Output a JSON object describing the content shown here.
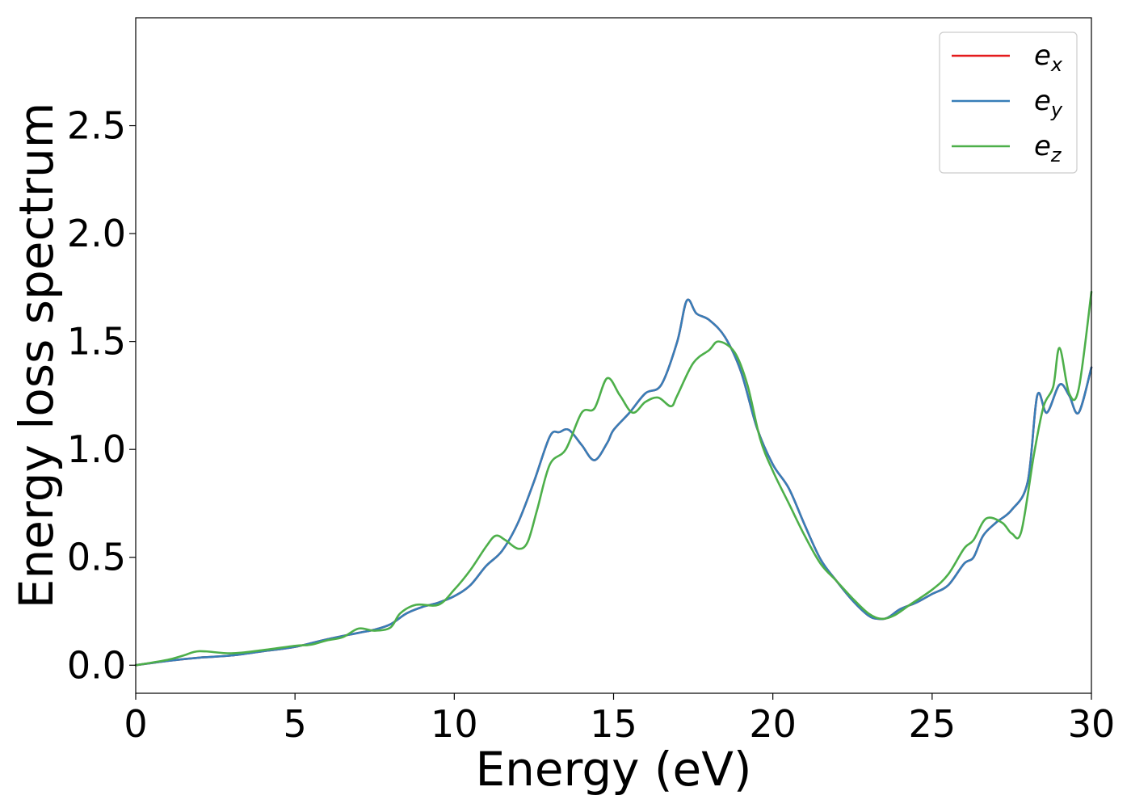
{
  "chart_data": {
    "type": "line",
    "title": "",
    "xlabel": "Energy (eV)",
    "ylabel": "Energy loss spectrum",
    "xlim": [
      0,
      30
    ],
    "ylim": [
      -0.13,
      3.0
    ],
    "xticks": [
      0,
      5,
      10,
      15,
      20,
      25,
      30
    ],
    "xtick_labels": [
      "0",
      "5",
      "10",
      "15",
      "20",
      "25",
      "30"
    ],
    "yticks": [
      0.0,
      0.5,
      1.0,
      1.5,
      2.0,
      2.5
    ],
    "ytick_labels": [
      "0.0",
      "0.5",
      "1.0",
      "1.5",
      "2.0",
      "2.5"
    ],
    "grid": false,
    "legend_position": "top-right",
    "series": [
      {
        "name": "e_x",
        "legend_base": "e",
        "legend_sub": "x",
        "color": "#e41a1c",
        "points": [
          [
            0,
            0
          ],
          [
            1,
            0.02
          ],
          [
            2,
            0.035
          ],
          [
            3,
            0.045
          ],
          [
            4,
            0.065
          ],
          [
            5,
            0.085
          ],
          [
            6,
            0.12
          ],
          [
            7,
            0.15
          ],
          [
            7.5,
            0.165
          ],
          [
            8,
            0.19
          ],
          [
            8.5,
            0.24
          ],
          [
            9,
            0.27
          ],
          [
            9.5,
            0.29
          ],
          [
            10,
            0.32
          ],
          [
            10.5,
            0.37
          ],
          [
            11,
            0.46
          ],
          [
            11.5,
            0.53
          ],
          [
            12,
            0.66
          ],
          [
            12.5,
            0.85
          ],
          [
            13,
            1.06
          ],
          [
            13.3,
            1.08
          ],
          [
            13.6,
            1.09
          ],
          [
            14,
            1.02
          ],
          [
            14.4,
            0.95
          ],
          [
            14.8,
            1.03
          ],
          [
            15,
            1.09
          ],
          [
            15.5,
            1.17
          ],
          [
            16,
            1.26
          ],
          [
            16.5,
            1.3
          ],
          [
            17,
            1.5
          ],
          [
            17.3,
            1.69
          ],
          [
            17.6,
            1.63
          ],
          [
            18,
            1.6
          ],
          [
            18.5,
            1.52
          ],
          [
            19,
            1.36
          ],
          [
            19.5,
            1.1
          ],
          [
            20,
            0.93
          ],
          [
            20.5,
            0.82
          ],
          [
            21,
            0.65
          ],
          [
            21.5,
            0.49
          ],
          [
            22,
            0.39
          ],
          [
            22.5,
            0.3
          ],
          [
            23,
            0.23
          ],
          [
            23.3,
            0.215
          ],
          [
            23.6,
            0.22
          ],
          [
            24,
            0.26
          ],
          [
            24.5,
            0.29
          ],
          [
            25,
            0.33
          ],
          [
            25.5,
            0.37
          ],
          [
            26,
            0.47
          ],
          [
            26.3,
            0.5
          ],
          [
            26.6,
            0.6
          ],
          [
            27,
            0.66
          ],
          [
            27.5,
            0.72
          ],
          [
            28,
            0.85
          ],
          [
            28.3,
            1.25
          ],
          [
            28.6,
            1.17
          ],
          [
            29,
            1.3
          ],
          [
            29.3,
            1.25
          ],
          [
            29.6,
            1.17
          ],
          [
            30,
            1.38
          ]
        ]
      },
      {
        "name": "e_y",
        "legend_base": "e",
        "legend_sub": "y",
        "color": "#377eb8",
        "points": [
          [
            0,
            0
          ],
          [
            1,
            0.02
          ],
          [
            2,
            0.035
          ],
          [
            3,
            0.045
          ],
          [
            4,
            0.065
          ],
          [
            5,
            0.085
          ],
          [
            6,
            0.12
          ],
          [
            7,
            0.15
          ],
          [
            7.5,
            0.165
          ],
          [
            8,
            0.19
          ],
          [
            8.5,
            0.24
          ],
          [
            9,
            0.27
          ],
          [
            9.5,
            0.29
          ],
          [
            10,
            0.32
          ],
          [
            10.5,
            0.37
          ],
          [
            11,
            0.46
          ],
          [
            11.5,
            0.53
          ],
          [
            12,
            0.66
          ],
          [
            12.5,
            0.85
          ],
          [
            13,
            1.06
          ],
          [
            13.3,
            1.08
          ],
          [
            13.6,
            1.09
          ],
          [
            14,
            1.02
          ],
          [
            14.4,
            0.95
          ],
          [
            14.8,
            1.03
          ],
          [
            15,
            1.09
          ],
          [
            15.5,
            1.17
          ],
          [
            16,
            1.26
          ],
          [
            16.5,
            1.3
          ],
          [
            17,
            1.5
          ],
          [
            17.3,
            1.69
          ],
          [
            17.6,
            1.63
          ],
          [
            18,
            1.6
          ],
          [
            18.5,
            1.52
          ],
          [
            19,
            1.36
          ],
          [
            19.5,
            1.1
          ],
          [
            20,
            0.93
          ],
          [
            20.5,
            0.82
          ],
          [
            21,
            0.65
          ],
          [
            21.5,
            0.49
          ],
          [
            22,
            0.39
          ],
          [
            22.5,
            0.3
          ],
          [
            23,
            0.23
          ],
          [
            23.3,
            0.215
          ],
          [
            23.6,
            0.22
          ],
          [
            24,
            0.26
          ],
          [
            24.5,
            0.29
          ],
          [
            25,
            0.33
          ],
          [
            25.5,
            0.37
          ],
          [
            26,
            0.47
          ],
          [
            26.3,
            0.5
          ],
          [
            26.6,
            0.6
          ],
          [
            27,
            0.66
          ],
          [
            27.5,
            0.72
          ],
          [
            28,
            0.85
          ],
          [
            28.3,
            1.25
          ],
          [
            28.6,
            1.17
          ],
          [
            29,
            1.3
          ],
          [
            29.3,
            1.25
          ],
          [
            29.6,
            1.17
          ],
          [
            30,
            1.38
          ]
        ]
      },
      {
        "name": "e_z",
        "legend_base": "e",
        "legend_sub": "z",
        "color": "#4daf4a",
        "points": [
          [
            0,
            0
          ],
          [
            1,
            0.025
          ],
          [
            1.5,
            0.045
          ],
          [
            2,
            0.065
          ],
          [
            3,
            0.055
          ],
          [
            4,
            0.07
          ],
          [
            5,
            0.09
          ],
          [
            5.5,
            0.095
          ],
          [
            6,
            0.115
          ],
          [
            6.5,
            0.13
          ],
          [
            7,
            0.17
          ],
          [
            7.5,
            0.16
          ],
          [
            8,
            0.175
          ],
          [
            8.3,
            0.24
          ],
          [
            8.8,
            0.28
          ],
          [
            9.5,
            0.28
          ],
          [
            10,
            0.35
          ],
          [
            10.5,
            0.44
          ],
          [
            11,
            0.55
          ],
          [
            11.3,
            0.6
          ],
          [
            11.6,
            0.58
          ],
          [
            12,
            0.54
          ],
          [
            12.3,
            0.57
          ],
          [
            12.6,
            0.72
          ],
          [
            13,
            0.93
          ],
          [
            13.5,
            1.0
          ],
          [
            14,
            1.17
          ],
          [
            14.4,
            1.19
          ],
          [
            14.8,
            1.33
          ],
          [
            15.2,
            1.25
          ],
          [
            15.6,
            1.17
          ],
          [
            16,
            1.22
          ],
          [
            16.4,
            1.24
          ],
          [
            16.8,
            1.2
          ],
          [
            17,
            1.25
          ],
          [
            17.5,
            1.4
          ],
          [
            18,
            1.46
          ],
          [
            18.3,
            1.5
          ],
          [
            18.8,
            1.45
          ],
          [
            19.2,
            1.3
          ],
          [
            19.6,
            1.05
          ],
          [
            20,
            0.9
          ],
          [
            20.5,
            0.75
          ],
          [
            21,
            0.6
          ],
          [
            21.5,
            0.47
          ],
          [
            22,
            0.39
          ],
          [
            22.5,
            0.31
          ],
          [
            23,
            0.24
          ],
          [
            23.4,
            0.215
          ],
          [
            23.8,
            0.23
          ],
          [
            24.3,
            0.28
          ],
          [
            25,
            0.35
          ],
          [
            25.5,
            0.42
          ],
          [
            26,
            0.54
          ],
          [
            26.3,
            0.58
          ],
          [
            26.7,
            0.68
          ],
          [
            27.2,
            0.66
          ],
          [
            27.5,
            0.61
          ],
          [
            27.8,
            0.62
          ],
          [
            28.2,
            0.98
          ],
          [
            28.5,
            1.2
          ],
          [
            28.8,
            1.29
          ],
          [
            29,
            1.47
          ],
          [
            29.3,
            1.26
          ],
          [
            29.6,
            1.28
          ],
          [
            30,
            1.73
          ]
        ]
      }
    ]
  }
}
